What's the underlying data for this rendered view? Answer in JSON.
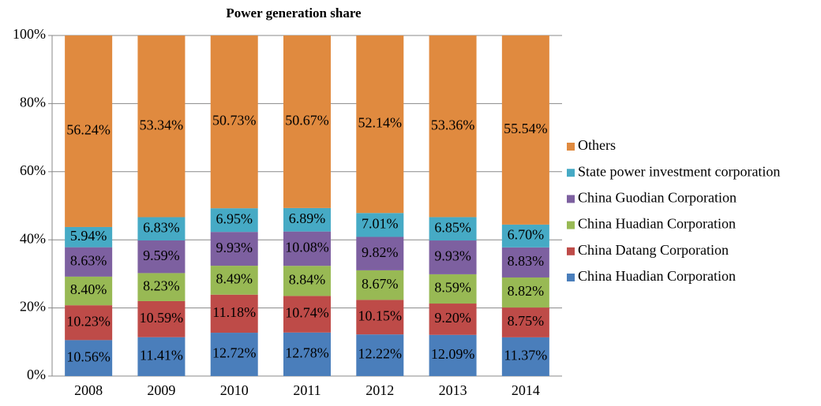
{
  "chart_data": {
    "type": "stacked_bar_100",
    "title": "Power generation share",
    "categories": [
      "2008",
      "2009",
      "2010",
      "2011",
      "2012",
      "2013",
      "2014"
    ],
    "series": [
      {
        "name": "China Huadian Corporation",
        "color": "#4a7ebb",
        "values": [
          10.56,
          11.41,
          12.72,
          12.78,
          12.22,
          12.09,
          11.37
        ],
        "value_labels": [
          "10.56%",
          "11.41%",
          "12.72%",
          "12.78%",
          "12.22%",
          "12.09%",
          "11.37%"
        ]
      },
      {
        "name": "China Datang Corporation",
        "color": "#be4b48",
        "values": [
          10.23,
          10.59,
          11.18,
          10.74,
          10.15,
          9.2,
          8.75
        ],
        "value_labels": [
          "10.23%",
          "10.59%",
          "11.18%",
          "10.74%",
          "10.15%",
          "9.20%",
          "8.75%"
        ]
      },
      {
        "name": "China Huadian Corporation",
        "color": "#98b954",
        "values": [
          8.4,
          8.23,
          8.49,
          8.84,
          8.67,
          8.59,
          8.82
        ],
        "value_labels": [
          "8.40%",
          "8.23%",
          "8.49%",
          "8.84%",
          "8.67%",
          "8.59%",
          "8.82%"
        ]
      },
      {
        "name": "China Guodian Corporation",
        "color": "#7d60a0",
        "values": [
          8.63,
          9.59,
          9.93,
          10.08,
          9.82,
          9.93,
          8.83
        ],
        "value_labels": [
          "8.63%",
          "9.59%",
          "9.93%",
          "10.08%",
          "9.82%",
          "9.93%",
          "8.83%"
        ]
      },
      {
        "name": "State power investment corporation",
        "color": "#46aac5",
        "values": [
          5.94,
          6.83,
          6.95,
          6.89,
          7.01,
          6.85,
          6.7
        ],
        "value_labels": [
          "5.94%",
          "6.83%",
          "6.95%",
          "6.89%",
          "7.01%",
          "6.85%",
          "6.70%"
        ]
      },
      {
        "name": "Others",
        "color": "#e08a3f",
        "values": [
          56.24,
          53.34,
          50.73,
          50.67,
          52.14,
          53.36,
          55.54
        ],
        "value_labels": [
          "56.24%",
          "53.34%",
          "50.73%",
          "50.67%",
          "52.14%",
          "53.36%",
          "55.54%"
        ]
      }
    ],
    "ylim": [
      0,
      100
    ],
    "yticks": [
      {
        "value": 0,
        "label": "0%"
      },
      {
        "value": 20,
        "label": "20%"
      },
      {
        "value": 40,
        "label": "40%"
      },
      {
        "value": 60,
        "label": "60%"
      },
      {
        "value": 80,
        "label": "80%"
      },
      {
        "value": 100,
        "label": "100%"
      }
    ],
    "grid": true,
    "legend": "right"
  }
}
